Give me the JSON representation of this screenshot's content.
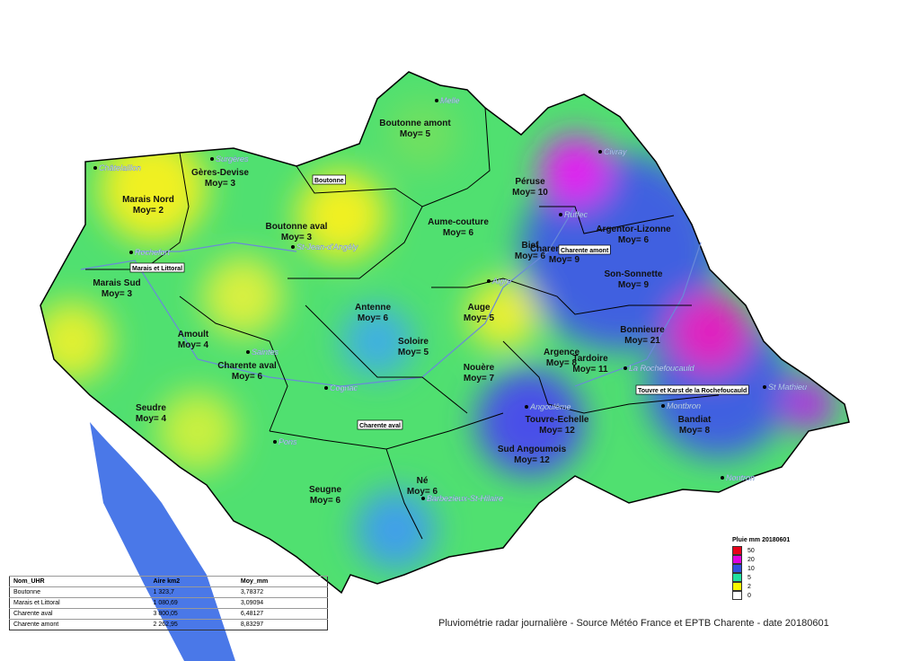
{
  "map": {
    "zones": [
      {
        "name": "Boutonne amont",
        "mean": "Moy= 5"
      },
      {
        "name": "Gères-Devise",
        "mean": "Moy= 3"
      },
      {
        "name": "Marais Nord",
        "mean": "Moy= 2"
      },
      {
        "name": "Boutonne aval",
        "mean": "Moy= 3"
      },
      {
        "name": "Aume-couture",
        "mean": "Moy= 6"
      },
      {
        "name": "Péruse",
        "mean": "Moy= 10"
      },
      {
        "name": "Argentor-Lizonne",
        "mean": "Moy= 6"
      },
      {
        "name": "Bief",
        "mean": "Moy= 6"
      },
      {
        "name": "Charente amont",
        "mean": "Moy= 9"
      },
      {
        "name": "Son-Sonnette",
        "mean": "Moy= 9"
      },
      {
        "name": "Marais Sud",
        "mean": "Moy= 3"
      },
      {
        "name": "Antenne",
        "mean": "Moy= 6"
      },
      {
        "name": "Auge",
        "mean": "Moy= 5"
      },
      {
        "name": "Soloire",
        "mean": "Moy= 5"
      },
      {
        "name": "Amoult",
        "mean": "Moy= 4"
      },
      {
        "name": "Bonnieure",
        "mean": "Moy= 21"
      },
      {
        "name": "Charente aval",
        "mean": "Moy= 6"
      },
      {
        "name": "Argence",
        "mean": "Moy= 8"
      },
      {
        "name": "Tardoire",
        "mean": "Moy= 11"
      },
      {
        "name": "Nouère",
        "mean": "Moy= 7"
      },
      {
        "name": "Seudre",
        "mean": "Moy= 4"
      },
      {
        "name": "Touvre-Echelle",
        "mean": "Moy= 12"
      },
      {
        "name": "Bandiat",
        "mean": "Moy= 8"
      },
      {
        "name": "Sud Angoumois",
        "mean": "Moy= 12"
      },
      {
        "name": "Seugne",
        "mean": "Moy= 6"
      },
      {
        "name": "Né",
        "mean": "Moy= 6"
      }
    ],
    "towns": [
      "Melle",
      "Civray",
      "Surgères",
      "Châtelaillon",
      "Rochefort",
      "Ruffec",
      "St-Jean-d'Angély",
      "Saintes",
      "Aigre",
      "Cognac",
      "Angoulême",
      "La Rochefoucauld",
      "St Mathieu",
      "Montbron",
      "Nontron",
      "Pons",
      "Barbezieux-St-Hilaire"
    ],
    "boxed_labels": [
      "Boutonne",
      "Marais et Littoral",
      "Charente amont",
      "Charente aval",
      "Touvre et Karst de la Rochefoucauld"
    ]
  },
  "legend": {
    "title": "Pluie mm 20180601",
    "items": [
      {
        "label": "50",
        "color": "#e8001a"
      },
      {
        "label": "20",
        "color": "#e000e0"
      },
      {
        "label": "10",
        "color": "#3050e0"
      },
      {
        "label": "5",
        "color": "#20e0a0"
      },
      {
        "label": "2",
        "color": "#f8f800"
      },
      {
        "label": "0",
        "color": "#ffffff"
      }
    ]
  },
  "table": {
    "headers": [
      "Nom_UHR",
      "Aire km2",
      "Moy_mm"
    ],
    "rows": [
      [
        "Boutonne",
        "1 323,7",
        "3,78372"
      ],
      [
        "Marais et Littoral",
        "1 080,69",
        "3,09094"
      ],
      [
        "Charente aval",
        "3 800,05",
        "6,48127"
      ],
      [
        "Charente amont",
        "2 262,95",
        "8,83297"
      ]
    ]
  },
  "caption": "Pluviométrie radar journalière - Source Météo France et EPTB Charente - date 20180601"
}
